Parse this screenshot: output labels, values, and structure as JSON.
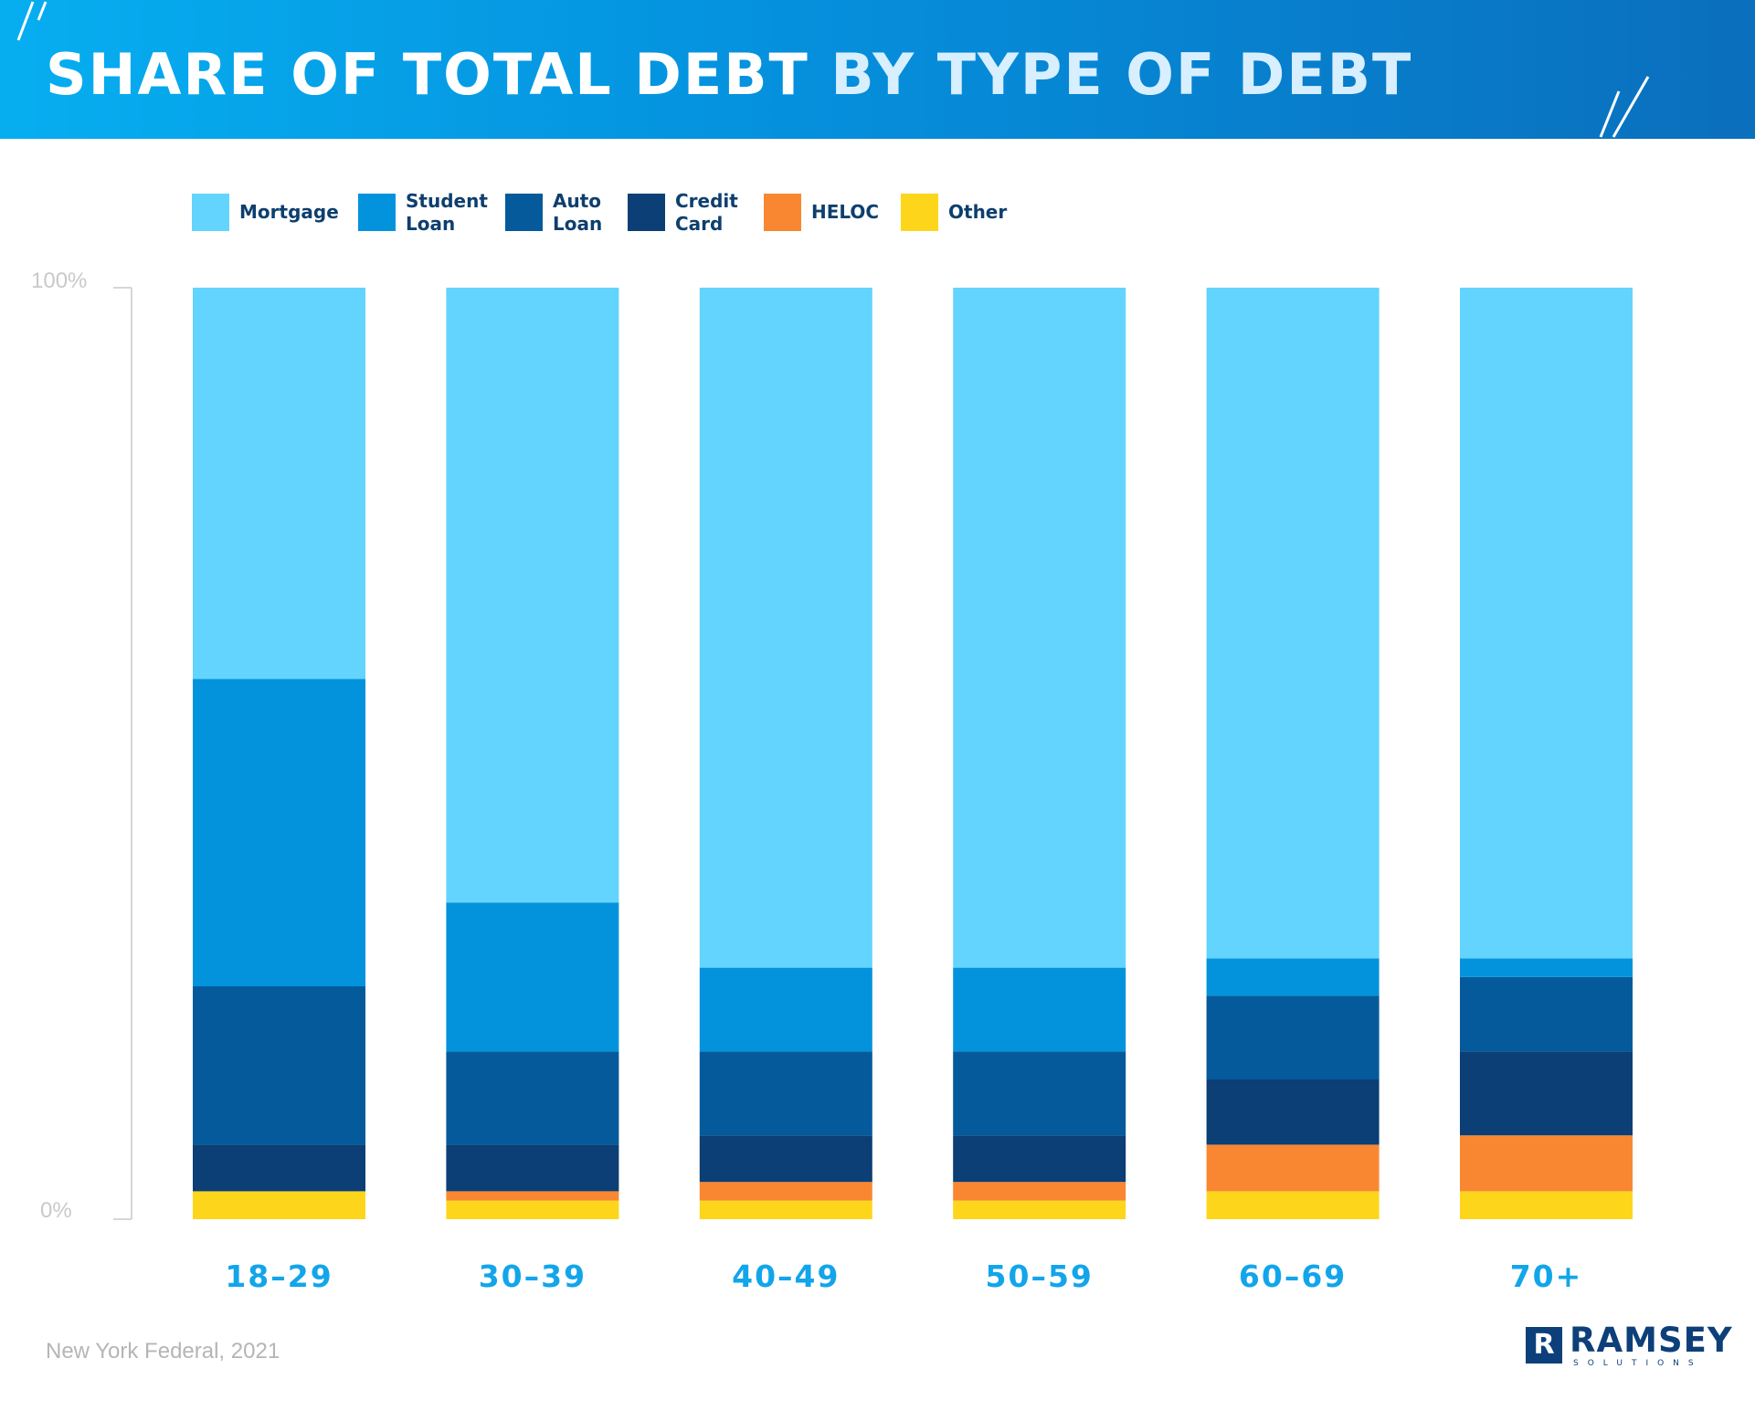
{
  "header": {
    "title_part1": "SHARE OF TOTAL DEBT",
    "title_part2": "BY TYPE OF DEBT"
  },
  "colors": {
    "header_start": "#06aef0",
    "header_end": "#0a6fbd",
    "category_label": "#12a5ea",
    "axis": "#d6d6d6"
  },
  "source": "New York Federal, 2021",
  "logo": {
    "name": "RAMSEY",
    "sub": "SOLUTIONS",
    "mark": "R"
  },
  "chart_data": {
    "type": "bar",
    "stacked": true,
    "title": "SHARE OF TOTAL DEBT BY TYPE OF DEBT",
    "xlabel": "",
    "ylabel": "",
    "ylim": [
      0,
      100
    ],
    "y_tick_labels": [
      "0%",
      "100%"
    ],
    "grid": false,
    "legend_position": "top",
    "categories": [
      "18–29",
      "30–39",
      "40–49",
      "50–59",
      "60–69",
      "70+"
    ],
    "series": [
      {
        "name": "Other",
        "color": "#fdd61c",
        "values": [
          3,
          2,
          2,
          2,
          3,
          3
        ]
      },
      {
        "name": "HELOC",
        "color": "#f98731",
        "values": [
          0,
          1,
          2,
          2,
          5,
          6
        ]
      },
      {
        "name": "Credit Card",
        "color": "#0b3f75",
        "values": [
          5,
          5,
          5,
          5,
          7,
          9
        ]
      },
      {
        "name": "Auto Loan",
        "color": "#045a9b",
        "values": [
          17,
          10,
          9,
          9,
          9,
          8
        ]
      },
      {
        "name": "Student Loan",
        "color": "#0293dc",
        "values": [
          33,
          16,
          9,
          9,
          4,
          2
        ]
      },
      {
        "name": "Mortgage",
        "color": "#63d4fd",
        "values": [
          42,
          66,
          73,
          73,
          72,
          72
        ]
      }
    ],
    "legend": [
      {
        "name": "Mortgage",
        "color": "#63d4fd"
      },
      {
        "name": "Student Loan",
        "color": "#0293dc"
      },
      {
        "name": "Auto Loan",
        "color": "#045a9b"
      },
      {
        "name": "Credit Card",
        "color": "#0b3f75"
      },
      {
        "name": "HELOC",
        "color": "#f98731"
      },
      {
        "name": "Other",
        "color": "#fdd61c"
      }
    ]
  }
}
